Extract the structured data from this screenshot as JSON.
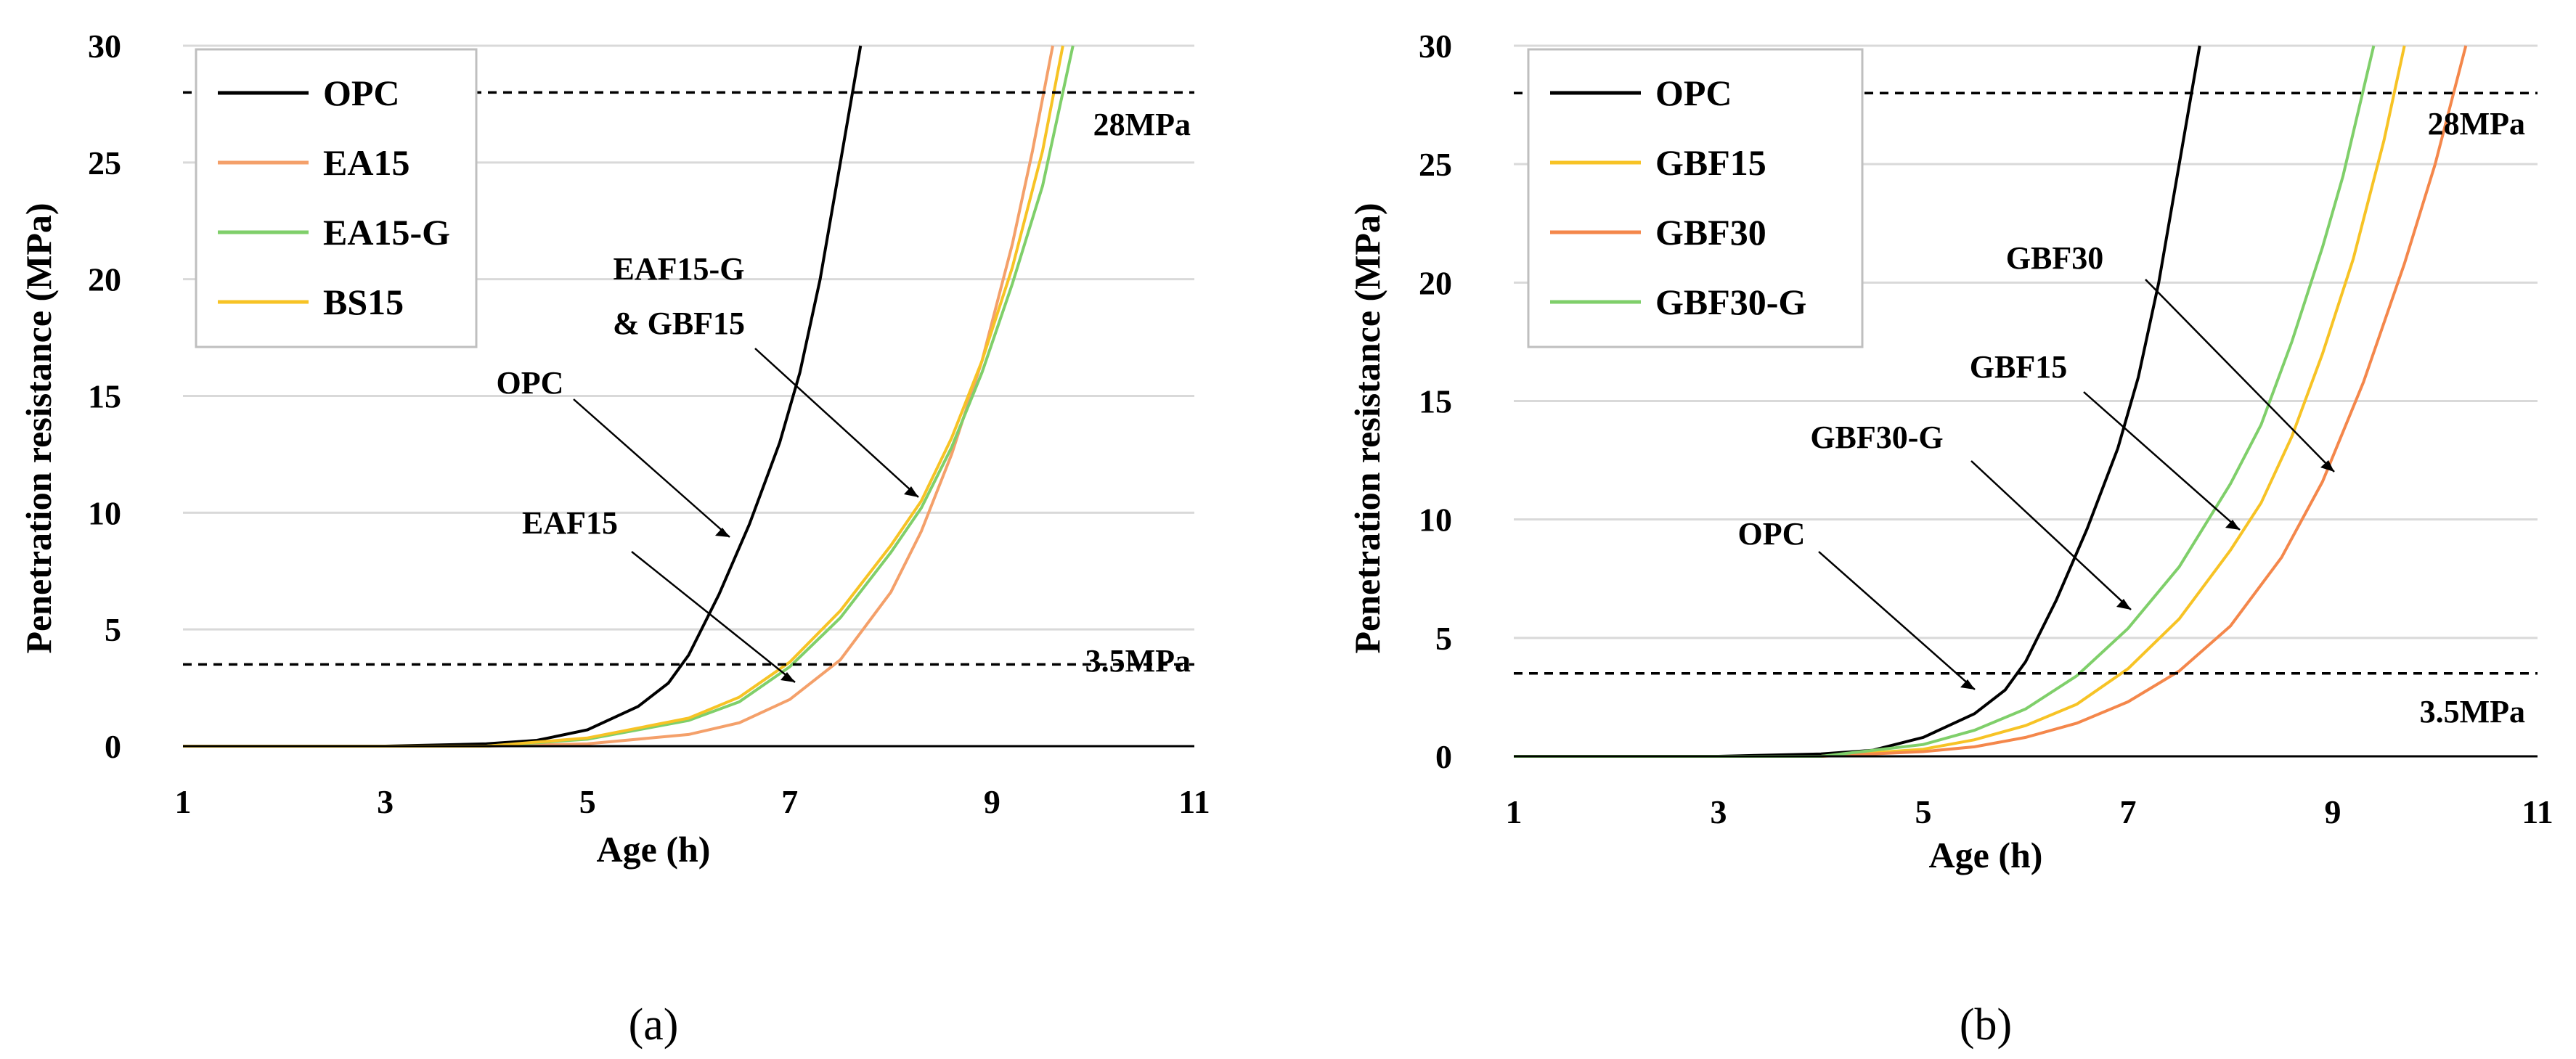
{
  "chart_data": [
    {
      "type": "line",
      "panel_label": "(a)",
      "xlabel": "Age (h)",
      "ylabel": "Penetration resistance (MPa)",
      "xlim": [
        1,
        11
      ],
      "ylim": [
        0,
        30
      ],
      "xticks": [
        "1",
        "3",
        "5",
        "7",
        "9",
        "11"
      ],
      "yticks": [
        "0",
        "5",
        "10",
        "15",
        "20",
        "25",
        "30"
      ],
      "grid": true,
      "legend_position": "top-left",
      "reference_lines": [
        {
          "y": 3.5,
          "label": "3.5MPa"
        },
        {
          "y": 28,
          "label": "28MPa"
        }
      ],
      "series": [
        {
          "name": "OPC",
          "color": "#000000",
          "x": [
            1,
            3,
            4,
            4.5,
            5,
            5.5,
            5.8,
            6,
            6.3,
            6.6,
            6.9,
            7.1,
            7.3,
            7.5,
            7.7
          ],
          "y": [
            0,
            0,
            0.1,
            0.25,
            0.7,
            1.7,
            2.7,
            3.9,
            6.5,
            9.5,
            13,
            16,
            20,
            25,
            30
          ]
        },
        {
          "name": "EA15",
          "color": "#f4a06a",
          "x": [
            1,
            4,
            5,
            6,
            6.5,
            7,
            7.5,
            8,
            8.3,
            8.6,
            8.9,
            9.2,
            9.4,
            9.6
          ],
          "y": [
            0,
            0,
            0.1,
            0.5,
            1.0,
            2.0,
            3.7,
            6.6,
            9.2,
            12.5,
            16.5,
            21.5,
            25.5,
            30
          ]
        },
        {
          "name": "EA15-G",
          "color": "#7fcf6a",
          "x": [
            1,
            4,
            5,
            6,
            6.5,
            7,
            7.5,
            8,
            8.3,
            8.6,
            8.9,
            9.2,
            9.5,
            9.8
          ],
          "y": [
            0,
            0,
            0.3,
            1.1,
            1.9,
            3.4,
            5.5,
            8.3,
            10.2,
            12.8,
            16.0,
            19.8,
            24.0,
            30
          ]
        },
        {
          "name": "BS15",
          "color": "#f7c325",
          "x": [
            1,
            4,
            5,
            6,
            6.5,
            7,
            7.5,
            8,
            8.3,
            8.6,
            8.9,
            9.2,
            9.5,
            9.7
          ],
          "y": [
            0,
            0,
            0.35,
            1.2,
            2.1,
            3.6,
            5.8,
            8.6,
            10.5,
            13.2,
            16.5,
            20.5,
            25.5,
            30
          ]
        }
      ],
      "annotations": [
        {
          "text": "OPC"
        },
        {
          "text": "EAF15"
        },
        {
          "text": "EAF15-G"
        },
        {
          "text": "& GBF15"
        }
      ]
    },
    {
      "type": "line",
      "panel_label": "(b)",
      "xlabel": "Age (h)",
      "ylabel": "Penetration resistance (MPa)",
      "xlim": [
        1,
        11
      ],
      "ylim": [
        0,
        30
      ],
      "xticks": [
        "1",
        "3",
        "5",
        "7",
        "9",
        "11"
      ],
      "yticks": [
        "0",
        "5",
        "10",
        "15",
        "20",
        "25",
        "30"
      ],
      "grid": true,
      "legend_position": "top-left",
      "reference_lines": [
        {
          "y": 3.5,
          "label": "3.5MPa"
        },
        {
          "y": 28,
          "label": "28MPa"
        }
      ],
      "series": [
        {
          "name": "OPC",
          "color": "#000000",
          "x": [
            1,
            3,
            4,
            4.5,
            5,
            5.5,
            5.8,
            6,
            6.3,
            6.6,
            6.9,
            7.1,
            7.3,
            7.5,
            7.7
          ],
          "y": [
            0,
            0,
            0.1,
            0.25,
            0.8,
            1.8,
            2.8,
            4.0,
            6.6,
            9.6,
            13,
            16,
            20,
            25,
            30
          ]
        },
        {
          "name": "GBF15",
          "color": "#f7c325",
          "x": [
            1,
            4,
            5,
            5.5,
            6,
            6.5,
            7,
            7.5,
            8,
            8.3,
            8.6,
            8.9,
            9.2,
            9.5,
            9.7
          ],
          "y": [
            0,
            0,
            0.3,
            0.7,
            1.3,
            2.2,
            3.7,
            5.8,
            8.7,
            10.7,
            13.5,
            17.0,
            21.0,
            26.0,
            30
          ]
        },
        {
          "name": "GBF30",
          "color": "#f4874b",
          "x": [
            1,
            4,
            5,
            5.5,
            6,
            6.5,
            7,
            7.5,
            8,
            8.5,
            8.9,
            9.3,
            9.7,
            10.0,
            10.3
          ],
          "y": [
            0,
            0,
            0.2,
            0.4,
            0.8,
            1.4,
            2.3,
            3.6,
            5.5,
            8.4,
            11.6,
            15.8,
            20.8,
            25.0,
            30
          ]
        },
        {
          "name": "GBF30-G",
          "color": "#7fcf6a",
          "x": [
            1,
            4,
            5,
            5.5,
            6,
            6.5,
            7,
            7.5,
            8,
            8.3,
            8.6,
            8.9,
            9.1,
            9.4
          ],
          "y": [
            0,
            0,
            0.5,
            1.1,
            2.0,
            3.4,
            5.4,
            8.0,
            11.5,
            14.0,
            17.5,
            21.5,
            24.5,
            30
          ]
        }
      ],
      "annotations": [
        {
          "text": "OPC"
        },
        {
          "text": "GBF30-G"
        },
        {
          "text": "GBF15"
        },
        {
          "text": "GBF30"
        }
      ]
    }
  ]
}
